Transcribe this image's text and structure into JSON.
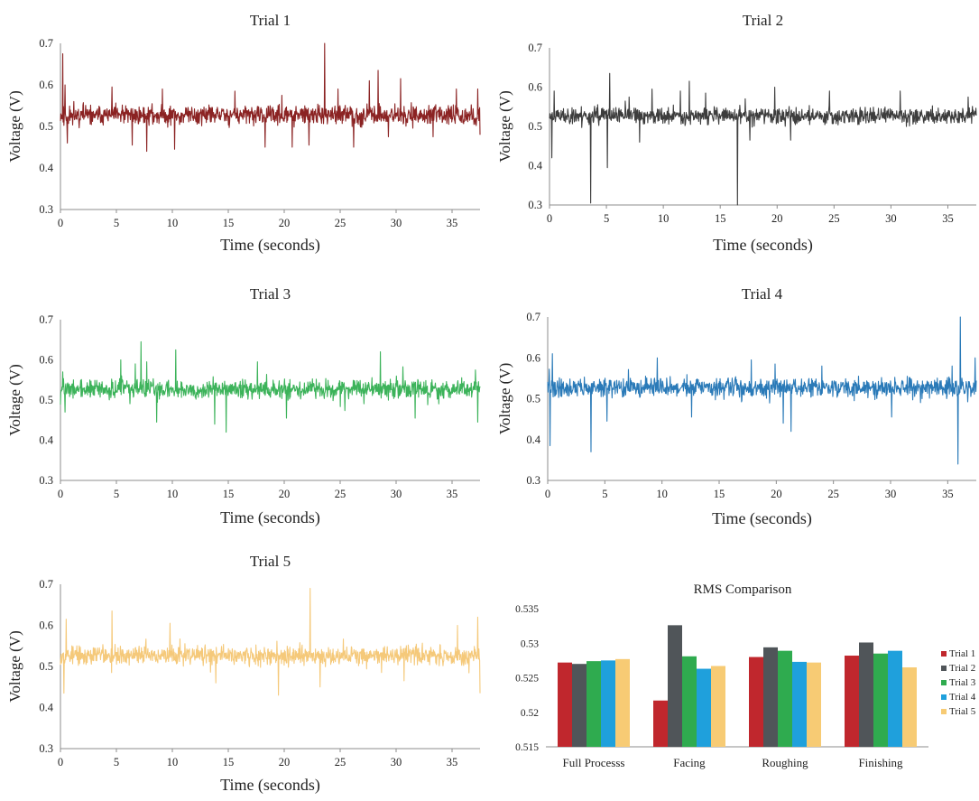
{
  "chart_data": [
    {
      "type": "line",
      "title": "Trial 1",
      "xlabel": "Time (seconds)",
      "ylabel": "Voltage (V)",
      "xlim": [
        0,
        37.5
      ],
      "ylim": [
        0.3,
        0.7
      ],
      "xticks": [
        "0",
        "5",
        "10",
        "15",
        "20",
        "25",
        "30",
        "35"
      ],
      "yticks": [
        "0.3",
        "0.4",
        "0.5",
        "0.6",
        "0.7"
      ],
      "color": "#8b2323",
      "series": [
        {
          "baseline": 0.527,
          "noise_amplitude": 0.022,
          "spikes": [
            [
              0.2,
              0.675
            ],
            [
              0.4,
              0.6
            ],
            [
              0.6,
              0.46
            ],
            [
              1.2,
              0.56
            ],
            [
              4.6,
              0.595
            ],
            [
              6.4,
              0.455
            ],
            [
              7.7,
              0.44
            ],
            [
              9.1,
              0.59
            ],
            [
              10.2,
              0.445
            ],
            [
              15.6,
              0.585
            ],
            [
              18.3,
              0.45
            ],
            [
              19.8,
              0.575
            ],
            [
              20.7,
              0.45
            ],
            [
              22.2,
              0.455
            ],
            [
              23.6,
              0.7
            ],
            [
              24.8,
              0.59
            ],
            [
              26.2,
              0.45
            ],
            [
              27.6,
              0.61
            ],
            [
              28.4,
              0.635
            ],
            [
              29.3,
              0.475
            ],
            [
              30.4,
              0.615
            ],
            [
              33.3,
              0.475
            ],
            [
              35.4,
              0.59
            ],
            [
              37.3,
              0.59
            ],
            [
              37.5,
              0.48
            ]
          ]
        }
      ]
    },
    {
      "type": "line",
      "title": "Trial 2",
      "xlabel": "Time (seconds)",
      "ylabel": "Voltage (V)",
      "xlim": [
        0,
        37.5
      ],
      "ylim": [
        0.3,
        0.7
      ],
      "xticks": [
        "0",
        "5",
        "10",
        "15",
        "20",
        "25",
        "30",
        "35"
      ],
      "yticks": [
        "0.3",
        "0.4",
        "0.5",
        "0.6",
        "0.7"
      ],
      "color": "#3d3d3d",
      "series": [
        {
          "baseline": 0.527,
          "noise_amplitude": 0.02,
          "spikes": [
            [
              0.2,
              0.42
            ],
            [
              0.4,
              0.59
            ],
            [
              3.6,
              0.305
            ],
            [
              5.3,
              0.635
            ],
            [
              5.1,
              0.395
            ],
            [
              7.0,
              0.575
            ],
            [
              7.9,
              0.46
            ],
            [
              9.0,
              0.595
            ],
            [
              11.5,
              0.59
            ],
            [
              12.3,
              0.615
            ],
            [
              13.7,
              0.585
            ],
            [
              16.5,
              0.3
            ],
            [
              17.6,
              0.465
            ],
            [
              19.8,
              0.6
            ],
            [
              21.2,
              0.465
            ],
            [
              24.6,
              0.59
            ],
            [
              30.8,
              0.59
            ],
            [
              36.8,
              0.575
            ]
          ]
        }
      ]
    },
    {
      "type": "line",
      "title": "Trial 3",
      "xlabel": "Time (seconds)",
      "ylabel": "Voltage (V)",
      "xlim": [
        0,
        37.5
      ],
      "ylim": [
        0.3,
        0.7
      ],
      "xticks": [
        "0",
        "5",
        "10",
        "15",
        "20",
        "25",
        "30",
        "35"
      ],
      "yticks": [
        "0.3",
        "0.4",
        "0.5",
        "0.6",
        "0.7"
      ],
      "color": "#3cb35a",
      "series": [
        {
          "baseline": 0.527,
          "noise_amplitude": 0.022,
          "spikes": [
            [
              0.2,
              0.57
            ],
            [
              0.4,
              0.47
            ],
            [
              5.4,
              0.6
            ],
            [
              6.7,
              0.59
            ],
            [
              7.2,
              0.645
            ],
            [
              7.7,
              0.595
            ],
            [
              8.6,
              0.445
            ],
            [
              10.3,
              0.625
            ],
            [
              13.8,
              0.44
            ],
            [
              14.8,
              0.42
            ],
            [
              17.6,
              0.595
            ],
            [
              20.2,
              0.455
            ],
            [
              28.6,
              0.62
            ],
            [
              31.7,
              0.455
            ],
            [
              37.1,
              0.575
            ],
            [
              37.3,
              0.445
            ]
          ]
        }
      ]
    },
    {
      "type": "line",
      "title": "Trial 4",
      "xlabel": "Time (seconds)",
      "ylabel": "Voltage (V)",
      "xlim": [
        0,
        37.5
      ],
      "ylim": [
        0.3,
        0.7
      ],
      "xticks": [
        "0",
        "5",
        "10",
        "15",
        "20",
        "25",
        "30",
        "35"
      ],
      "yticks": [
        "0.3",
        "0.4",
        "0.5",
        "0.6",
        "0.7"
      ],
      "color": "#2a7ab8",
      "series": [
        {
          "baseline": 0.527,
          "noise_amplitude": 0.022,
          "spikes": [
            [
              0.2,
              0.385
            ],
            [
              0.4,
              0.61
            ],
            [
              3.8,
              0.37
            ],
            [
              5.2,
              0.445
            ],
            [
              9.6,
              0.6
            ],
            [
              12.6,
              0.455
            ],
            [
              17.8,
              0.595
            ],
            [
              19.9,
              0.585
            ],
            [
              20.6,
              0.44
            ],
            [
              21.3,
              0.42
            ],
            [
              24.0,
              0.58
            ],
            [
              30.1,
              0.455
            ],
            [
              35.4,
              0.58
            ],
            [
              35.9,
              0.34
            ],
            [
              36.1,
              0.7
            ],
            [
              37.4,
              0.6
            ]
          ]
        }
      ]
    },
    {
      "type": "line",
      "title": "Trial 5",
      "xlabel": "Time (seconds)",
      "ylabel": "Voltage (V)",
      "xlim": [
        0,
        37.5
      ],
      "ylim": [
        0.3,
        0.7
      ],
      "xticks": [
        "0",
        "5",
        "10",
        "15",
        "20",
        "25",
        "30",
        "35"
      ],
      "yticks": [
        "0.3",
        "0.4",
        "0.5",
        "0.6",
        "0.7"
      ],
      "color": "#f5c97a",
      "series": [
        {
          "baseline": 0.527,
          "noise_amplitude": 0.022,
          "spikes": [
            [
              0.3,
              0.435
            ],
            [
              0.5,
              0.615
            ],
            [
              4.6,
              0.635
            ],
            [
              9.8,
              0.605
            ],
            [
              13.9,
              0.46
            ],
            [
              19.5,
              0.43
            ],
            [
              22.3,
              0.69
            ],
            [
              23.2,
              0.45
            ],
            [
              30.7,
              0.465
            ],
            [
              35.5,
              0.6
            ],
            [
              37.3,
              0.62
            ],
            [
              37.5,
              0.435
            ]
          ]
        }
      ]
    },
    {
      "type": "bar",
      "title": "RMS Comparison",
      "categories": [
        "Full Processs",
        "Facing",
        "Roughing",
        "Finishing"
      ],
      "ylim": [
        0.515,
        0.535
      ],
      "yticks": [
        "0.515",
        "0.52",
        "0.525",
        "0.53",
        "0.535"
      ],
      "legend_position": "right",
      "series": [
        {
          "name": "Trial 1",
          "color": "#c0272d",
          "values": [
            0.5272,
            0.5217,
            0.528,
            0.5282
          ]
        },
        {
          "name": "Trial 2",
          "color": "#505559",
          "values": [
            0.527,
            0.5326,
            0.5294,
            0.5301
          ]
        },
        {
          "name": "Trial 3",
          "color": "#2fab4f",
          "values": [
            0.5274,
            0.5281,
            0.5289,
            0.5285
          ]
        },
        {
          "name": "Trial 4",
          "color": "#1fa0dc",
          "values": [
            0.5275,
            0.5263,
            0.5273,
            0.5289
          ]
        },
        {
          "name": "Trial 5",
          "color": "#f7cb74",
          "values": [
            0.5277,
            0.5267,
            0.5272,
            0.5265
          ]
        }
      ]
    }
  ]
}
